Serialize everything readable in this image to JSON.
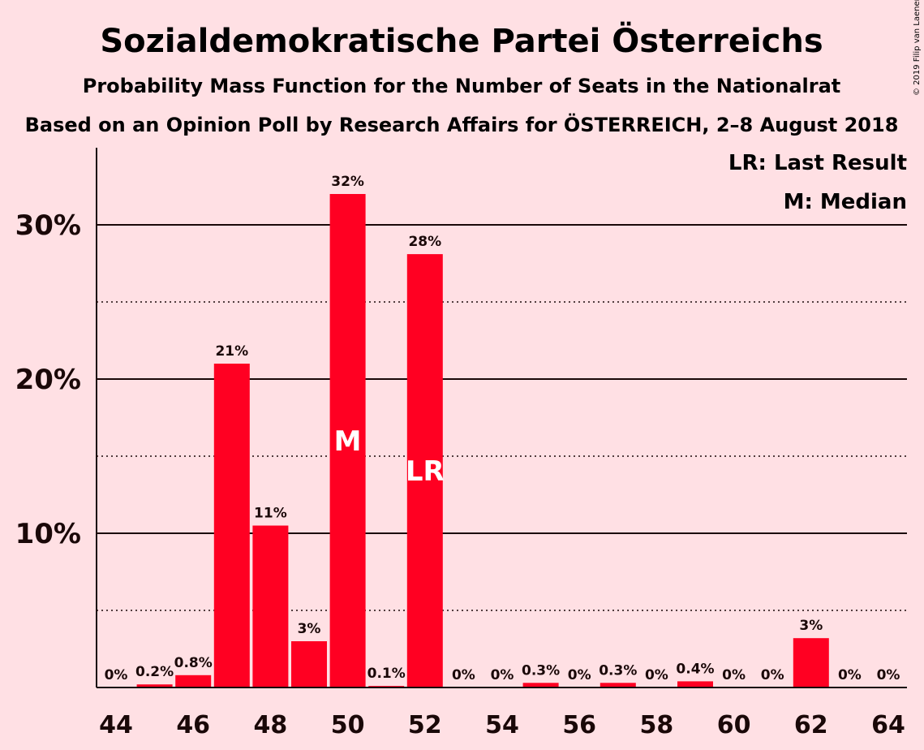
{
  "copyright": "© 2019 Filip van Laenen",
  "legend": {
    "last_result": "LR: Last Result",
    "median": "M: Median"
  },
  "colors": {
    "bar": "#ff0022",
    "background": "#ffe0e4",
    "text": "#1a0808"
  },
  "chart_data": {
    "type": "bar",
    "title": "Sozialdemokratische Partei Österreichs",
    "subtitle": "Probability Mass Function for the Number of Seats in the Nationalrat",
    "subtitle2": "Based on an Opinion Poll by Research Affairs for ÖSTERREICH, 2–8 August 2018",
    "x": [
      44,
      45,
      46,
      47,
      48,
      49,
      50,
      51,
      52,
      53,
      54,
      55,
      56,
      57,
      58,
      59,
      60,
      61,
      62,
      63,
      64
    ],
    "values": [
      0,
      0.2,
      0.8,
      21,
      10.5,
      3,
      32,
      0.1,
      28.1,
      0,
      0,
      0.3,
      0,
      0.3,
      0,
      0.4,
      0,
      0,
      3.2,
      0,
      0
    ],
    "labels": [
      "0%",
      "0.2%",
      "0.8%",
      "21%",
      "11%",
      "3%",
      "32%",
      "0.1%",
      "28%",
      "0%",
      "0%",
      "0.3%",
      "0%",
      "0.3%",
      "0%",
      "0.4%",
      "0%",
      "0%",
      "3%",
      "0%",
      "0%"
    ],
    "x_ticks": [
      "44",
      "46",
      "48",
      "50",
      "52",
      "54",
      "56",
      "58",
      "60",
      "62",
      "64"
    ],
    "y_ticks": [
      {
        "value": 10,
        "label": "10%"
      },
      {
        "value": 20,
        "label": "20%"
      },
      {
        "value": 30,
        "label": "30%"
      }
    ],
    "ylim": [
      0,
      35
    ],
    "median_seat": 50,
    "median_label": "M",
    "last_result_seat": 52,
    "last_result_label": "LR",
    "grid": "solid lines at 10%, 20%, 30%; dotted lines at 5%, 15%, 25%"
  }
}
